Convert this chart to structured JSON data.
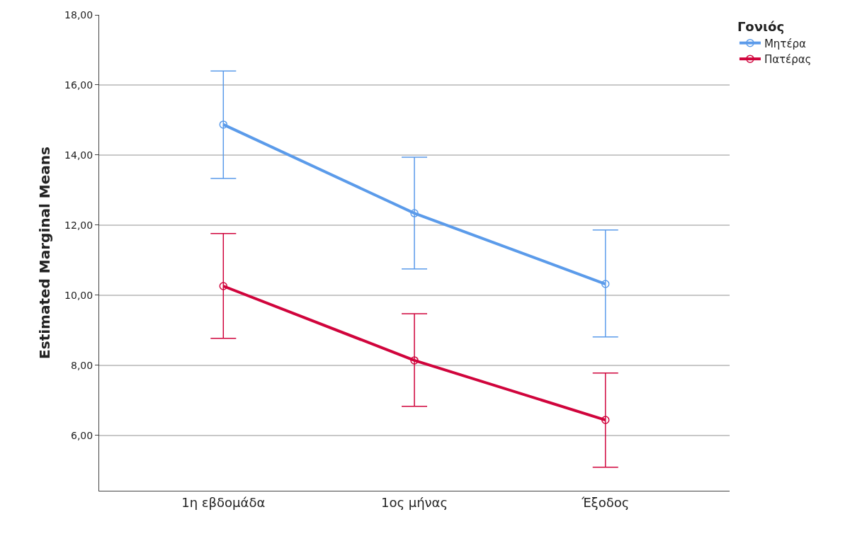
{
  "chart_data": {
    "type": "line",
    "ylabel": "Estimated Marginal Means",
    "legend_title": "Γονιός",
    "categories": [
      "1η εβδομάδα",
      "1ος μήνας",
      "Έξοδος"
    ],
    "series": [
      {
        "name": "Μητέρα",
        "color": "#5b9bea",
        "values": [
          14.87,
          12.34,
          10.32
        ],
        "errors": [
          [
            13.33,
            16.4
          ],
          [
            10.75,
            13.94
          ],
          [
            8.81,
            11.86
          ]
        ]
      },
      {
        "name": "Πατέρας",
        "color": "#d0043c",
        "values": [
          10.26,
          8.14,
          6.44
        ],
        "errors": [
          [
            8.77,
            11.76
          ],
          [
            6.83,
            9.47
          ],
          [
            5.09,
            7.78
          ]
        ]
      }
    ],
    "ylim": [
      4.42,
      18
    ],
    "yticks": [
      {
        "value": 6,
        "label": "6,00"
      },
      {
        "value": 8,
        "label": "8,00"
      },
      {
        "value": 10,
        "label": "10,00"
      },
      {
        "value": 12,
        "label": "12,00"
      },
      {
        "value": 14,
        "label": "14,00"
      },
      {
        "value": 16,
        "label": "16,00"
      },
      {
        "value": 18,
        "label": "18,00"
      }
    ],
    "grid": "y",
    "legend": "top right",
    "marker": "circle",
    "line_style": "solid"
  }
}
